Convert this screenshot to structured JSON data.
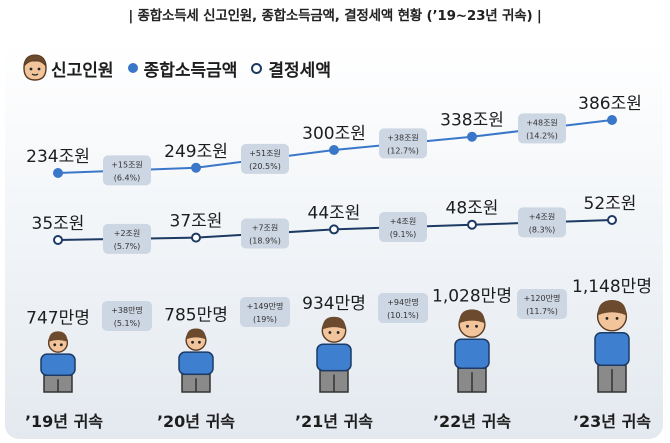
{
  "title": "| 종합소득세 신고인원, 종합소득금액, 결정세액 현황 (’19~23년 귀속) |",
  "legend": {
    "filers": "신고인원",
    "income": "종합소득금액",
    "tax": "결정세액"
  },
  "colors": {
    "income": "#3a77c8",
    "tax": "#1d3a63",
    "box": "#cdd6e3",
    "shirt": "#3f7fd0",
    "pants": "#8a8a8a"
  },
  "chart_data": [
    {
      "type": "line",
      "categories": [
        "’19년 귀속",
        "’20년 귀속",
        "’21년 귀속",
        "’22년 귀속",
        "’23년 귀속"
      ],
      "series": [
        {
          "name": "종합소득금액",
          "values": [
            234,
            249,
            300,
            338,
            386
          ],
          "labels": [
            "234조원",
            "249조원",
            "300조원",
            "338조원",
            "386조원"
          ],
          "changes": [
            [
              "+15조원",
              "(6.4%)"
            ],
            [
              "+51조원",
              "(20.5%)"
            ],
            [
              "+38조원",
              "(12.7%)"
            ],
            [
              "+48조원",
              "(14.2%)"
            ]
          ]
        },
        {
          "name": "결정세액",
          "values": [
            35,
            37,
            44,
            48,
            52
          ],
          "labels": [
            "35조원",
            "37조원",
            "44조원",
            "48조원",
            "52조원"
          ],
          "changes": [
            [
              "+2조원",
              "(5.7%)"
            ],
            [
              "+7조원",
              "(18.9%)"
            ],
            [
              "+4조원",
              "(9.1%)"
            ],
            [
              "+4조원",
              "(8.3%)"
            ]
          ]
        }
      ]
    },
    {
      "type": "bar",
      "categories": [
        "’19년 귀속",
        "’20년 귀속",
        "’21년 귀속",
        "’22년 귀속",
        "’23년 귀속"
      ],
      "series": [
        {
          "name": "신고인원",
          "values": [
            747,
            785,
            934,
            1028,
            1148
          ],
          "labels": [
            "747만명",
            "785만명",
            "934만명",
            "1,028만명",
            "1,148만명"
          ],
          "changes": [
            [
              "+38만명",
              "(5.1%)"
            ],
            [
              "+149만명",
              "(19%)"
            ],
            [
              "+94만명",
              "(10.1%)"
            ],
            [
              "+120만명",
              "(11.7%)"
            ]
          ]
        }
      ]
    }
  ]
}
